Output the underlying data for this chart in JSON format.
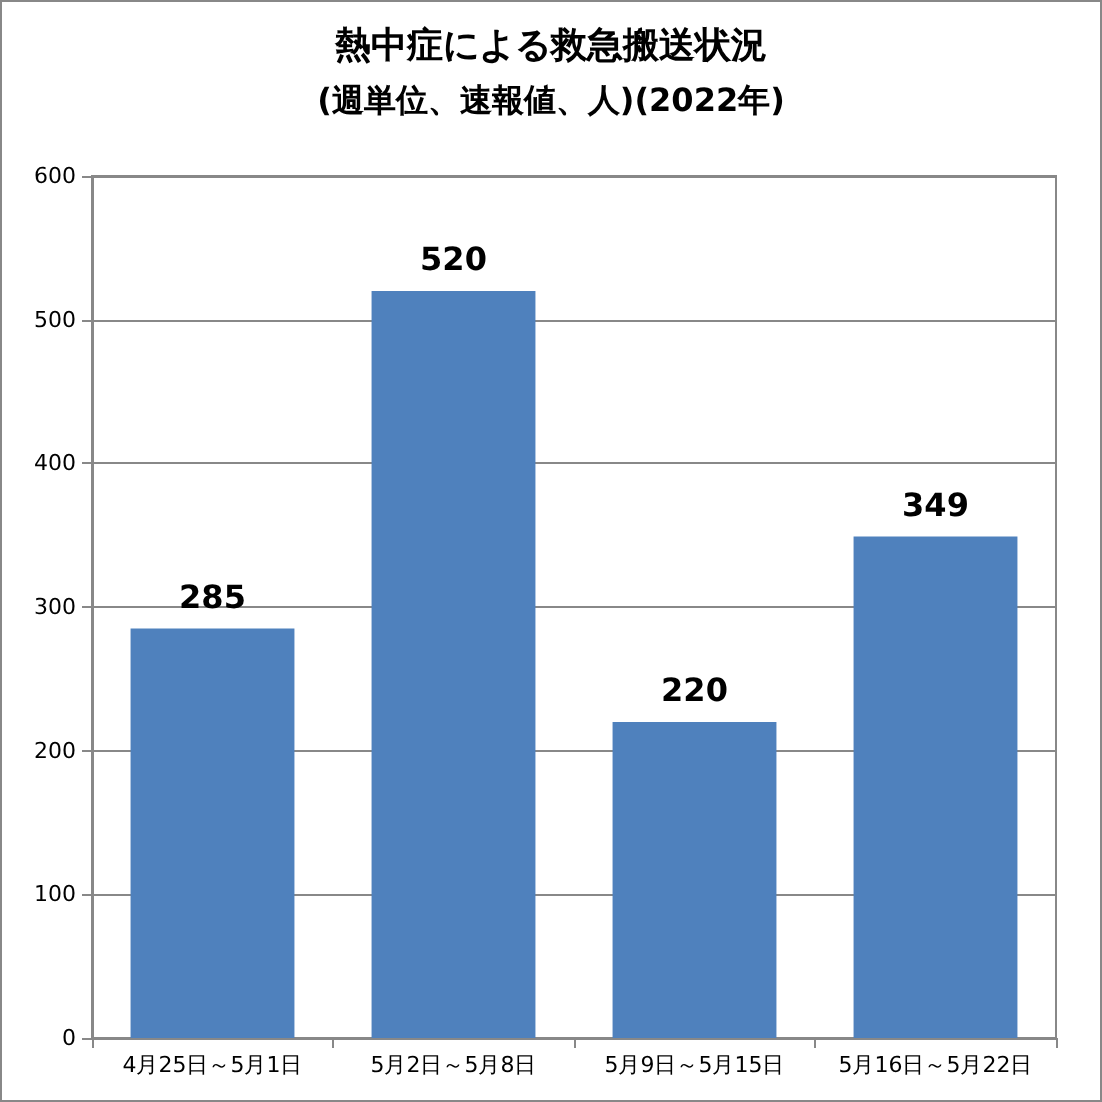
{
  "chart_data": {
    "type": "bar",
    "title": "熱中症による救急搬送状況",
    "subtitle": "(週単位、速報値、人)(2022年)",
    "categories": [
      "4月25日～5月1日",
      "5月2日～5月8日",
      "5月9日～5月15日",
      "5月16日～5月22日"
    ],
    "values": [
      285,
      520,
      220,
      349
    ],
    "color": "#4f81bd",
    "ylim": [
      0,
      600
    ],
    "yticks": [
      0,
      100,
      200,
      300,
      400,
      500,
      600
    ],
    "grid": "y",
    "data_labels": true
  }
}
